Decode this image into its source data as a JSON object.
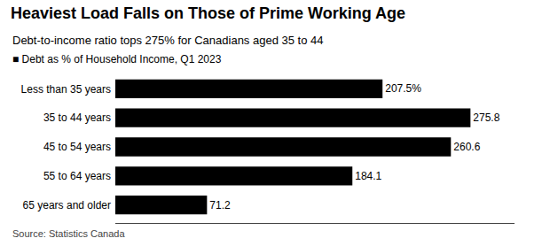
{
  "chart_data": {
    "type": "bar",
    "orientation": "horizontal",
    "title": "Heaviest Load Falls on Those of Prime Working Age",
    "subtitle": "Debt-to-income ratio tops 275% for Canadians aged 35 to 44",
    "annotations": [
      "■ Debt as % of Household Income, Q1 2023",
      "Source: Statistics Canada"
    ],
    "categories": [
      "Less than 35 years",
      "35 to 44 years",
      "45 to 54 years",
      "55 to 64 years",
      "65 years and older"
    ],
    "values": [
      207.5,
      275.8,
      260.6,
      184.1,
      71.2
    ],
    "value_labels": [
      "207.5%",
      "275.8",
      "260.6",
      "184.1",
      "71.2"
    ],
    "color": "#000000",
    "xlim": [
      0,
      310
    ],
    "data_labels": true,
    "tick_labels": "y",
    "grid": false
  }
}
